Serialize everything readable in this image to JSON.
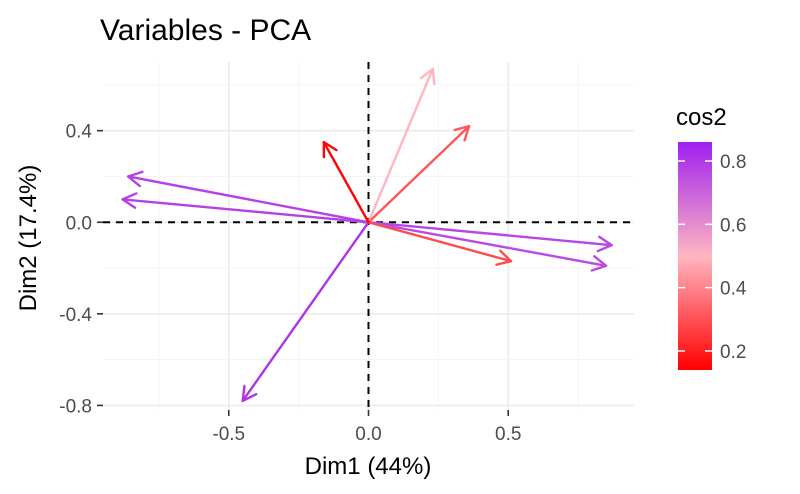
{
  "chart_data": {
    "type": "pca-variable-correlation",
    "title": "Variables - PCA",
    "xlabel": "Dim1 (44%)",
    "ylabel": "Dim2 (17.4%)",
    "xlim": [
      -0.95,
      0.95
    ],
    "ylim": [
      -0.82,
      0.7
    ],
    "x_ticks": [
      -0.5,
      0.0,
      0.5
    ],
    "x_tick_labels": [
      "-0.5",
      "0.0",
      "0.5"
    ],
    "y_ticks": [
      -0.8,
      -0.4,
      0.0,
      0.4
    ],
    "y_tick_labels": [
      "-0.8",
      "-0.4",
      "0.0",
      "0.4"
    ],
    "grid": true,
    "reference_lines": {
      "x": 0,
      "y": 0,
      "style": "dashed"
    },
    "legend": {
      "title": "cos2",
      "position": "right",
      "range": [
        0.14,
        0.86
      ],
      "ticks": [
        0.2,
        0.4,
        0.6,
        0.8
      ],
      "tick_labels": [
        "0.2",
        "0.4",
        "0.6",
        "0.8"
      ],
      "colors": [
        "#ff0000",
        "#ffb6c1",
        "#a020f0"
      ]
    },
    "vectors": [
      {
        "x": 0.87,
        "y": -0.1,
        "cos2": 0.77
      },
      {
        "x": 0.85,
        "y": -0.19,
        "cos2": 0.76
      },
      {
        "x": -0.86,
        "y": 0.2,
        "cos2": 0.78
      },
      {
        "x": -0.88,
        "y": 0.1,
        "cos2": 0.78
      },
      {
        "x": -0.45,
        "y": -0.78,
        "cos2": 0.81
      },
      {
        "x": 0.23,
        "y": 0.67,
        "cos2": 0.5
      },
      {
        "x": 0.36,
        "y": 0.42,
        "cos2": 0.31
      },
      {
        "x": 0.51,
        "y": -0.17,
        "cos2": 0.29
      },
      {
        "x": -0.16,
        "y": 0.35,
        "cos2": 0.15
      }
    ]
  }
}
